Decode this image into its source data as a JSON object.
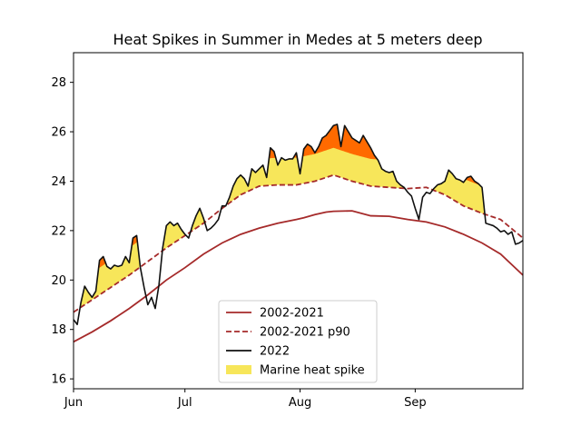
{
  "chart_data": {
    "type": "line",
    "title": "Heat Spikes in Summer in Medes at 5 meters deep",
    "xlabel": "",
    "ylabel": "",
    "x_ticks": [
      "Jun",
      "Jul",
      "Aug",
      "Sep"
    ],
    "x_tick_days": [
      0,
      30,
      61,
      92
    ],
    "xlim": [
      0,
      121
    ],
    "ylim": [
      15.6,
      29.2
    ],
    "y_ticks": [
      16,
      18,
      20,
      22,
      24,
      26,
      28
    ],
    "legend_position": "lower-center",
    "grid": false,
    "colors": {
      "climatology": "#a52a2a",
      "p90": "#a52a2a",
      "observed": "#111111",
      "spike_fill": "#f7e65a",
      "severe_fill": "#ff6a00"
    },
    "series": [
      {
        "name": "2002-2021",
        "style": "solid",
        "x": [
          0,
          5,
          10,
          15,
          20,
          25,
          30,
          35,
          40,
          45,
          50,
          55,
          60,
          62,
          65,
          68,
          70,
          75,
          80,
          85,
          90,
          95,
          100,
          105,
          110,
          115,
          121
        ],
        "y": [
          17.5,
          17.9,
          18.35,
          18.85,
          19.4,
          20.0,
          20.5,
          21.05,
          21.5,
          21.85,
          22.1,
          22.3,
          22.45,
          22.52,
          22.65,
          22.75,
          22.78,
          22.8,
          22.6,
          22.58,
          22.45,
          22.35,
          22.15,
          21.85,
          21.5,
          21.05,
          20.2
        ]
      },
      {
        "name": "2002-2021 p90",
        "style": "dashed",
        "x": [
          0,
          5,
          10,
          15,
          20,
          25,
          30,
          35,
          40,
          45,
          50,
          55,
          60,
          65,
          70,
          75,
          80,
          85,
          90,
          95,
          100,
          105,
          110,
          115,
          121
        ],
        "y": [
          18.7,
          19.2,
          19.7,
          20.2,
          20.75,
          21.3,
          21.8,
          22.3,
          22.9,
          23.45,
          23.8,
          23.85,
          23.85,
          24.0,
          24.25,
          24.0,
          23.8,
          23.75,
          23.7,
          23.75,
          23.45,
          23.0,
          22.7,
          22.45,
          21.7
        ]
      },
      {
        "name": "2022",
        "style": "solid",
        "x": [
          0,
          1,
          2,
          3,
          4,
          5,
          6,
          7,
          8,
          9,
          10,
          11,
          12,
          13,
          14,
          15,
          16,
          17,
          18,
          19,
          20,
          21,
          22,
          23,
          24,
          25,
          26,
          27,
          28,
          29,
          30,
          31,
          32,
          33,
          34,
          35,
          36,
          37,
          38,
          39,
          40,
          41,
          42,
          43,
          44,
          45,
          46,
          47,
          48,
          49,
          50,
          51,
          52,
          53,
          54,
          55,
          56,
          57,
          58,
          59,
          60,
          61,
          62,
          63,
          64,
          65,
          66,
          67,
          68,
          69,
          70,
          71,
          72,
          73,
          74,
          75,
          76,
          77,
          78,
          79,
          80,
          81,
          82,
          83,
          84,
          85,
          86,
          87,
          88,
          89,
          90,
          91,
          92,
          93,
          94,
          95,
          96,
          97,
          98,
          99,
          100,
          101,
          102,
          103,
          104,
          105,
          106,
          107,
          108,
          109,
          110,
          111,
          112,
          113,
          114,
          115,
          116,
          117,
          118,
          119,
          120,
          121
        ],
        "y": [
          18.4,
          18.2,
          19.1,
          19.75,
          19.5,
          19.3,
          19.55,
          20.8,
          20.95,
          20.55,
          20.45,
          20.6,
          20.55,
          20.6,
          20.95,
          20.7,
          21.7,
          21.8,
          20.5,
          19.7,
          19.0,
          19.3,
          18.85,
          19.8,
          21.3,
          22.2,
          22.35,
          22.2,
          22.3,
          22.05,
          21.85,
          21.7,
          22.2,
          22.6,
          22.9,
          22.5,
          22.0,
          22.1,
          22.25,
          22.45,
          23.0,
          23.0,
          23.35,
          23.8,
          24.1,
          24.25,
          24.1,
          23.8,
          24.5,
          24.35,
          24.5,
          24.65,
          24.15,
          25.35,
          25.2,
          24.65,
          24.95,
          24.85,
          24.9,
          24.9,
          25.15,
          24.3,
          25.3,
          25.5,
          25.4,
          25.15,
          25.4,
          25.75,
          25.85,
          26.05,
          26.25,
          26.3,
          25.4,
          26.25,
          26.0,
          25.75,
          25.65,
          25.55,
          25.85,
          25.6,
          25.35,
          25.05,
          24.85,
          24.5,
          24.4,
          24.35,
          24.4,
          24.0,
          23.85,
          23.75,
          23.55,
          23.4,
          22.9,
          22.45,
          23.35,
          23.55,
          23.5,
          23.7,
          23.85,
          23.9,
          24.0,
          24.45,
          24.3,
          24.1,
          24.05,
          23.95,
          24.15,
          24.2,
          24.0,
          23.9,
          23.75,
          22.3,
          22.25,
          22.2,
          22.1,
          21.95,
          22.0,
          21.85,
          21.95,
          21.45,
          21.5,
          21.6
        ]
      }
    ],
    "fill_legend": "Marine heat spike",
    "legend_entries": [
      "2002-2021",
      "2002-2021 p90",
      "2022",
      "Marine heat spike"
    ]
  }
}
